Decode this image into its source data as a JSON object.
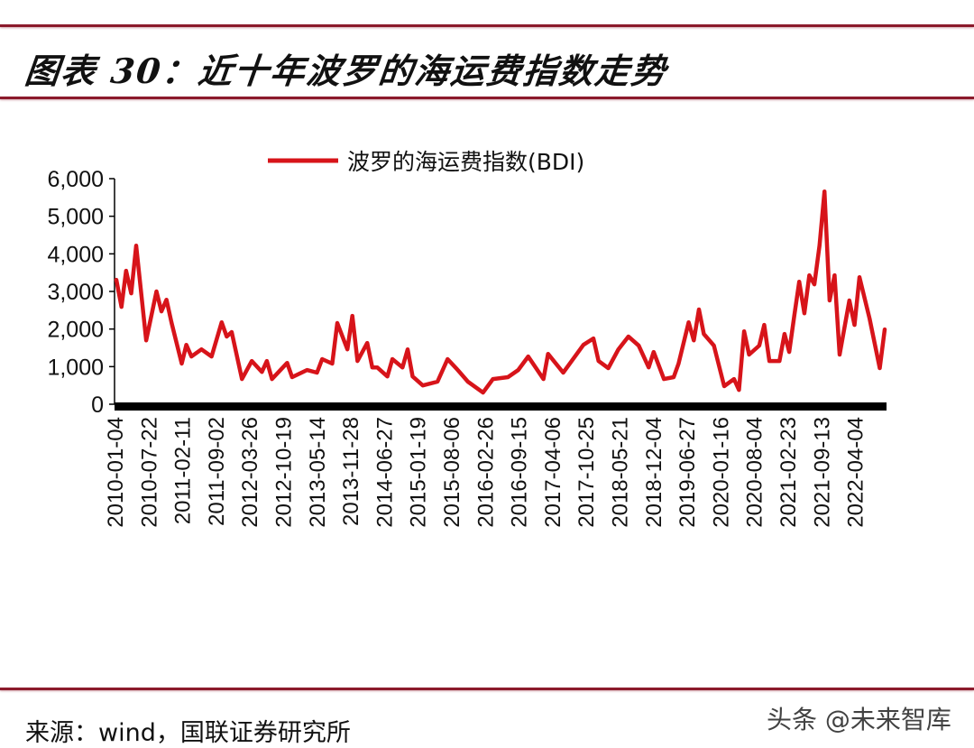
{
  "title": "图表 30：近十年波罗的海运费指数走势",
  "source": "来源：wind，国联证券研究所",
  "watermark": "头条 @未来智库",
  "colors": {
    "line": "#d7141a",
    "rule": "#8b1a2b",
    "axis": "#000000"
  },
  "chart_data": {
    "type": "line",
    "title": "",
    "xlabel": "",
    "ylabel": "",
    "ylim": [
      0,
      6000
    ],
    "yticks": [
      "0",
      "1,000",
      "2,000",
      "3,000",
      "4,000",
      "5,000",
      "6,000"
    ],
    "ytick_values": [
      0,
      1000,
      2000,
      3000,
      4000,
      5000,
      6000
    ],
    "xticks": [
      "2010-01-04",
      "2010-07-22",
      "2011-02-11",
      "2011-09-02",
      "2012-03-26",
      "2012-10-19",
      "2013-05-14",
      "2013-11-28",
      "2014-06-27",
      "2015-01-19",
      "2015-08-06",
      "2016-02-26",
      "2016-09-15",
      "2017-04-06",
      "2017-10-25",
      "2018-05-21",
      "2018-12-04",
      "2019-06-27",
      "2020-01-16",
      "2020-08-04",
      "2021-02-23",
      "2021-09-13",
      "2022-04-04"
    ],
    "grid": false,
    "legend": "top",
    "series": [
      {
        "name": "波罗的海运费指数(BDI)",
        "x": [
          "2010-01",
          "2010-02",
          "2010-03",
          "2010-04",
          "2010-05",
          "2010-07",
          "2010-09",
          "2010-10",
          "2010-11",
          "2010-12",
          "2011-02",
          "2011-03",
          "2011-04",
          "2011-06",
          "2011-08",
          "2011-10",
          "2011-11",
          "2011-12",
          "2012-02",
          "2012-04",
          "2012-06",
          "2012-07",
          "2012-08",
          "2012-11",
          "2012-12",
          "2013-03",
          "2013-05",
          "2013-06",
          "2013-08",
          "2013-09",
          "2013-11",
          "2013-12",
          "2014-01",
          "2014-03",
          "2014-04",
          "2014-05",
          "2014-07",
          "2014-08",
          "2014-10",
          "2014-11",
          "2014-12",
          "2015-02",
          "2015-05",
          "2015-07",
          "2015-09",
          "2015-11",
          "2016-02",
          "2016-04",
          "2016-07",
          "2016-09",
          "2016-11",
          "2017-02",
          "2017-03",
          "2017-06",
          "2017-10",
          "2017-12",
          "2018-01",
          "2018-03",
          "2018-05",
          "2018-07",
          "2018-09",
          "2018-11",
          "2018-12",
          "2019-02",
          "2019-04",
          "2019-05",
          "2019-07",
          "2019-08",
          "2019-09",
          "2019-10",
          "2019-12",
          "2020-02",
          "2020-04",
          "2020-05",
          "2020-06",
          "2020-07",
          "2020-09",
          "2020-10",
          "2020-11",
          "2021-01",
          "2021-02",
          "2021-03",
          "2021-04",
          "2021-05",
          "2021-06",
          "2021-07",
          "2021-08",
          "2021-09",
          "2021-10",
          "2021-11",
          "2021-12",
          "2022-01",
          "2022-03",
          "2022-04",
          "2022-05",
          "2022-07",
          "2022-09",
          "2022-10"
        ],
        "values": [
          3310,
          2590,
          3550,
          2950,
          4220,
          1700,
          3000,
          2470,
          2780,
          2180,
          1080,
          1580,
          1270,
          1460,
          1270,
          2180,
          1800,
          1920,
          670,
          1150,
          860,
          1150,
          670,
          1100,
          720,
          910,
          840,
          1200,
          1080,
          2160,
          1460,
          2350,
          1150,
          1630,
          980,
          980,
          740,
          1200,
          980,
          1460,
          740,
          500,
          600,
          1200,
          910,
          600,
          310,
          670,
          720,
          910,
          1270,
          670,
          1340,
          840,
          1580,
          1750,
          1150,
          960,
          1460,
          1800,
          1560,
          980,
          1390,
          670,
          720,
          1080,
          2180,
          1700,
          2520,
          1870,
          1560,
          480,
          670,
          380,
          1940,
          1320,
          1560,
          2110,
          1150,
          1150,
          1870,
          1390,
          2350,
          3260,
          2420,
          3430,
          3190,
          4220,
          5660,
          2760,
          3430,
          1320,
          2760,
          2110,
          3380,
          2280,
          960,
          1990
        ]
      }
    ]
  }
}
